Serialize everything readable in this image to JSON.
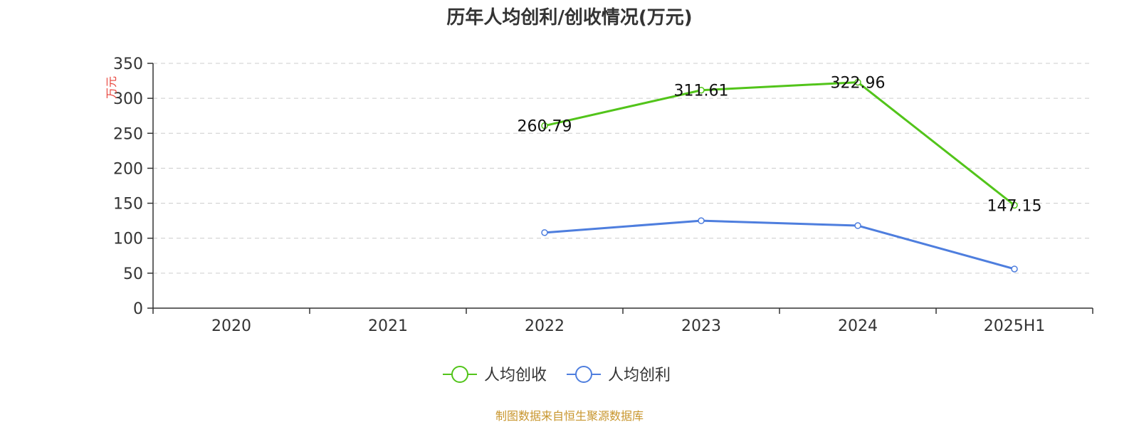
{
  "colors": {
    "revenue": "#52c41a",
    "profit": "#4e7ede",
    "unit": "#e8453c",
    "source": "#c8962e",
    "grid": "#cccccc",
    "axis": "#333333"
  },
  "chart_data": {
    "type": "line",
    "title": "历年人均创利/创收情况(万元)",
    "ylabel": "万元",
    "categories": [
      "2020",
      "2021",
      "2022",
      "2023",
      "2024",
      "2025H1"
    ],
    "ylim": [
      0,
      350
    ],
    "yticks": [
      0,
      50,
      100,
      150,
      200,
      250,
      300,
      350
    ],
    "grid": true,
    "legend_position": "bottom",
    "series": [
      {
        "name": "人均创收",
        "color": "#52c41a",
        "values": [
          null,
          null,
          260.79,
          311.61,
          322.96,
          147.15
        ],
        "data_labels": [
          null,
          null,
          "260.79",
          "311.61",
          "322.96",
          "147.15"
        ]
      },
      {
        "name": "人均创利",
        "color": "#4e7ede",
        "values": [
          null,
          null,
          108,
          125,
          118,
          56
        ],
        "data_labels": [
          null,
          null,
          null,
          null,
          null,
          null
        ]
      }
    ],
    "source": "制图数据来自恒生聚源数据库"
  }
}
